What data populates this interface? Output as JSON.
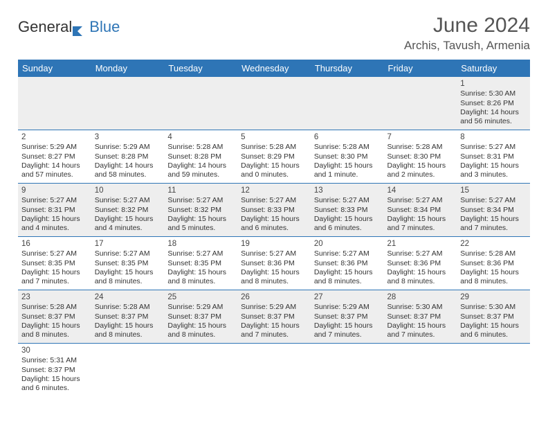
{
  "brand": {
    "general": "General",
    "blue": "Blue"
  },
  "title": "June 2024",
  "location": "Archis, Tavush, Armenia",
  "colors": {
    "header_bg": "#2e75b6",
    "header_fg": "#ffffff",
    "row_alt": "#eeeeee",
    "rule": "#2e75b6",
    "text": "#333333"
  },
  "weekdays": [
    "Sunday",
    "Monday",
    "Tuesday",
    "Wednesday",
    "Thursday",
    "Friday",
    "Saturday"
  ],
  "layout": {
    "first_weekday_index": 6,
    "days_in_month": 30
  },
  "days": {
    "1": {
      "sunrise": "5:30 AM",
      "sunset": "8:26 PM",
      "daylight": "14 hours and 56 minutes."
    },
    "2": {
      "sunrise": "5:29 AM",
      "sunset": "8:27 PM",
      "daylight": "14 hours and 57 minutes."
    },
    "3": {
      "sunrise": "5:29 AM",
      "sunset": "8:28 PM",
      "daylight": "14 hours and 58 minutes."
    },
    "4": {
      "sunrise": "5:28 AM",
      "sunset": "8:28 PM",
      "daylight": "14 hours and 59 minutes."
    },
    "5": {
      "sunrise": "5:28 AM",
      "sunset": "8:29 PM",
      "daylight": "15 hours and 0 minutes."
    },
    "6": {
      "sunrise": "5:28 AM",
      "sunset": "8:30 PM",
      "daylight": "15 hours and 1 minute."
    },
    "7": {
      "sunrise": "5:28 AM",
      "sunset": "8:30 PM",
      "daylight": "15 hours and 2 minutes."
    },
    "8": {
      "sunrise": "5:27 AM",
      "sunset": "8:31 PM",
      "daylight": "15 hours and 3 minutes."
    },
    "9": {
      "sunrise": "5:27 AM",
      "sunset": "8:31 PM",
      "daylight": "15 hours and 4 minutes."
    },
    "10": {
      "sunrise": "5:27 AM",
      "sunset": "8:32 PM",
      "daylight": "15 hours and 4 minutes."
    },
    "11": {
      "sunrise": "5:27 AM",
      "sunset": "8:32 PM",
      "daylight": "15 hours and 5 minutes."
    },
    "12": {
      "sunrise": "5:27 AM",
      "sunset": "8:33 PM",
      "daylight": "15 hours and 6 minutes."
    },
    "13": {
      "sunrise": "5:27 AM",
      "sunset": "8:33 PM",
      "daylight": "15 hours and 6 minutes."
    },
    "14": {
      "sunrise": "5:27 AM",
      "sunset": "8:34 PM",
      "daylight": "15 hours and 7 minutes."
    },
    "15": {
      "sunrise": "5:27 AM",
      "sunset": "8:34 PM",
      "daylight": "15 hours and 7 minutes."
    },
    "16": {
      "sunrise": "5:27 AM",
      "sunset": "8:35 PM",
      "daylight": "15 hours and 7 minutes."
    },
    "17": {
      "sunrise": "5:27 AM",
      "sunset": "8:35 PM",
      "daylight": "15 hours and 8 minutes."
    },
    "18": {
      "sunrise": "5:27 AM",
      "sunset": "8:35 PM",
      "daylight": "15 hours and 8 minutes."
    },
    "19": {
      "sunrise": "5:27 AM",
      "sunset": "8:36 PM",
      "daylight": "15 hours and 8 minutes."
    },
    "20": {
      "sunrise": "5:27 AM",
      "sunset": "8:36 PM",
      "daylight": "15 hours and 8 minutes."
    },
    "21": {
      "sunrise": "5:27 AM",
      "sunset": "8:36 PM",
      "daylight": "15 hours and 8 minutes."
    },
    "22": {
      "sunrise": "5:28 AM",
      "sunset": "8:36 PM",
      "daylight": "15 hours and 8 minutes."
    },
    "23": {
      "sunrise": "5:28 AM",
      "sunset": "8:37 PM",
      "daylight": "15 hours and 8 minutes."
    },
    "24": {
      "sunrise": "5:28 AM",
      "sunset": "8:37 PM",
      "daylight": "15 hours and 8 minutes."
    },
    "25": {
      "sunrise": "5:29 AM",
      "sunset": "8:37 PM",
      "daylight": "15 hours and 8 minutes."
    },
    "26": {
      "sunrise": "5:29 AM",
      "sunset": "8:37 PM",
      "daylight": "15 hours and 7 minutes."
    },
    "27": {
      "sunrise": "5:29 AM",
      "sunset": "8:37 PM",
      "daylight": "15 hours and 7 minutes."
    },
    "28": {
      "sunrise": "5:30 AM",
      "sunset": "8:37 PM",
      "daylight": "15 hours and 7 minutes."
    },
    "29": {
      "sunrise": "5:30 AM",
      "sunset": "8:37 PM",
      "daylight": "15 hours and 6 minutes."
    },
    "30": {
      "sunrise": "5:31 AM",
      "sunset": "8:37 PM",
      "daylight": "15 hours and 6 minutes."
    }
  },
  "labels": {
    "sunrise": "Sunrise: ",
    "sunset": "Sunset: ",
    "daylight": "Daylight: "
  }
}
